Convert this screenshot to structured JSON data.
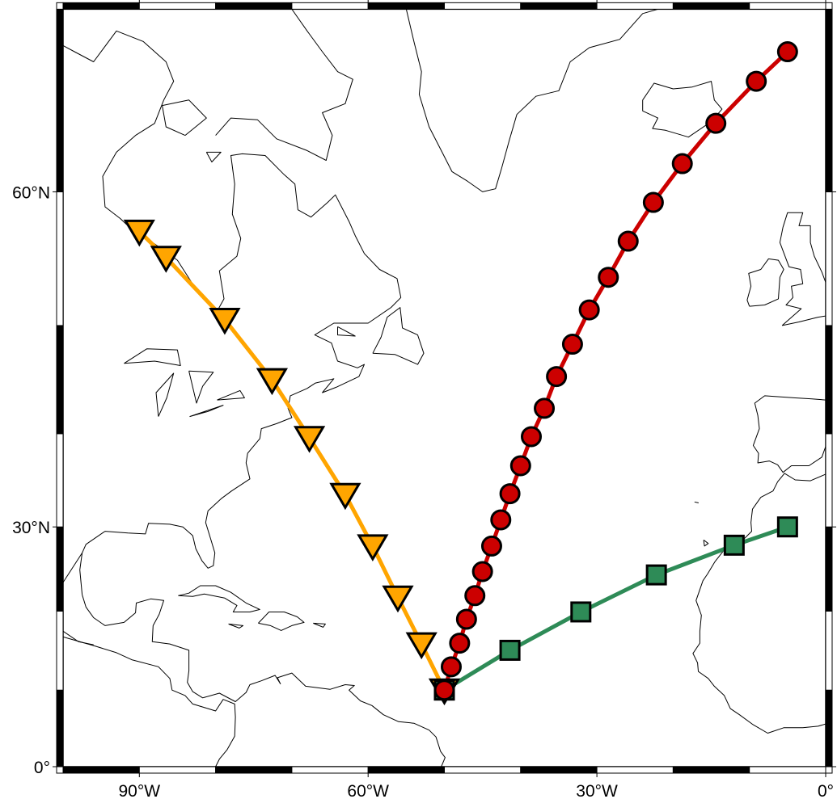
{
  "map": {
    "projection": "mercator",
    "region": {
      "lon": [
        -100,
        0
      ],
      "lat": [
        0,
        70
      ]
    },
    "frame_style": "fancy alternating black/white every 10 degrees",
    "x_tick_labels": [
      {
        "lon": -90,
        "label": "90°W"
      },
      {
        "lon": -60,
        "label": "60°W"
      },
      {
        "lon": -30,
        "label": "30°W"
      },
      {
        "lon": 0,
        "label": "0°"
      }
    ],
    "y_tick_labels": [
      {
        "lat": 0,
        "label": "0°"
      },
      {
        "lat": 30,
        "label": "30°N"
      },
      {
        "lat": 60,
        "label": "60°N"
      }
    ],
    "coastline_color": "#000000",
    "land_fill": "none"
  },
  "tracks": [
    {
      "marker": "inverted-triangle",
      "line_color": "#FFA500",
      "fill": "#FFA500",
      "points": [
        [
          -90.0,
          57.3
        ],
        [
          -86.5,
          55.4
        ],
        [
          -78.8,
          50.5
        ],
        [
          -72.6,
          45.2
        ],
        [
          -67.7,
          39.6
        ],
        [
          -63.0,
          33.6
        ],
        [
          -59.4,
          27.8
        ],
        [
          -56.1,
          21.7
        ],
        [
          -53.0,
          15.9
        ],
        [
          -50.0,
          10.0
        ]
      ]
    },
    {
      "marker": "square",
      "line_color": "#2E8B57",
      "fill": "#2E8B57",
      "points": [
        [
          -50.0,
          10.0
        ],
        [
          -41.4,
          15.1
        ],
        [
          -32.1,
          19.9
        ],
        [
          -22.2,
          24.4
        ],
        [
          -12.0,
          27.9
        ],
        [
          -5.0,
          30.0
        ]
      ]
    },
    {
      "marker": "circle",
      "line_color": "#CC0000",
      "fill": "#CC0000",
      "points": [
        [
          -50.0,
          10.0
        ],
        [
          -49.1,
          13.0
        ],
        [
          -48.0,
          16.0
        ],
        [
          -47.1,
          19.0
        ],
        [
          -46.0,
          21.9
        ],
        [
          -45.0,
          24.8
        ],
        [
          -43.8,
          27.8
        ],
        [
          -42.6,
          30.8
        ],
        [
          -41.4,
          33.7
        ],
        [
          -40.0,
          36.7
        ],
        [
          -38.6,
          39.7
        ],
        [
          -36.9,
          42.5
        ],
        [
          -35.3,
          45.5
        ],
        [
          -33.2,
          48.4
        ],
        [
          -31.0,
          51.3
        ],
        [
          -28.5,
          53.9
        ],
        [
          -25.9,
          56.6
        ],
        [
          -22.6,
          59.3
        ],
        [
          -18.8,
          61.8
        ],
        [
          -14.4,
          64.2
        ],
        [
          -9.1,
          66.5
        ],
        [
          -5.0,
          68.0
        ]
      ]
    }
  ]
}
